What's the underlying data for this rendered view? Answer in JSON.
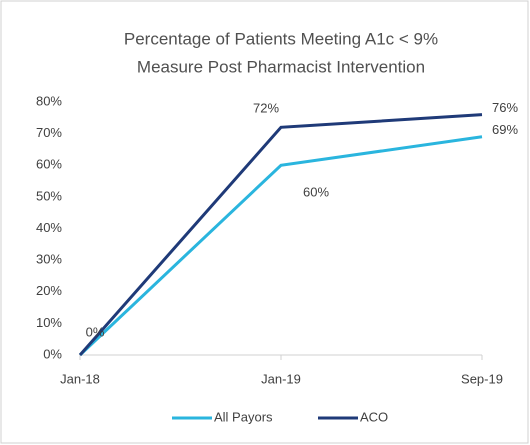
{
  "chart_data": {
    "type": "line",
    "title": [
      "Percentage of Patients Meeting A1c < 9%",
      "Measure Post Pharmacist Intervention"
    ],
    "categories": [
      "Jan-18",
      "Jan-19",
      "Sep-19"
    ],
    "series": [
      {
        "name": "All Payors",
        "color": "#2ab5de",
        "values": [
          0,
          60,
          69
        ],
        "value_labels": [
          null,
          "60%",
          "69%"
        ]
      },
      {
        "name": "ACO",
        "color": "#1f3a78",
        "values": [
          0,
          72,
          76
        ],
        "value_labels": [
          "0%",
          "72%",
          "76%"
        ]
      }
    ],
    "ylim": [
      0,
      80
    ],
    "yticks": [
      {
        "value": 0,
        "label": "0%"
      },
      {
        "value": 10,
        "label": "10%"
      },
      {
        "value": 20,
        "label": "20%"
      },
      {
        "value": 30,
        "label": "30%"
      },
      {
        "value": 40,
        "label": "40%"
      },
      {
        "value": 50,
        "label": "50%"
      },
      {
        "value": 60,
        "label": "60%"
      },
      {
        "value": 70,
        "label": "70%"
      },
      {
        "value": 80,
        "label": "80%"
      }
    ],
    "grid": false,
    "legend": "bottom"
  }
}
